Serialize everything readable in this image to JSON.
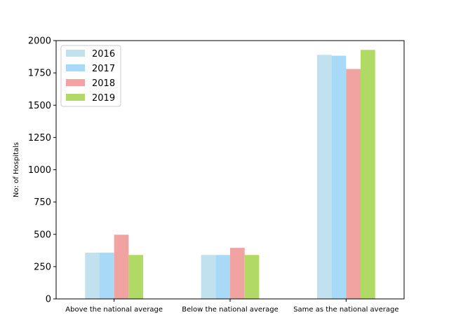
{
  "chart_data": {
    "type": "bar",
    "categories": [
      "Above the national average",
      "Below the national average",
      "Same as the national average"
    ],
    "series": [
      {
        "name": "2016",
        "color": "#c0e1ed",
        "values": [
          358,
          340,
          1890
        ]
      },
      {
        "name": "2017",
        "color": "#a8daf8",
        "values": [
          358,
          340,
          1883
        ]
      },
      {
        "name": "2018",
        "color": "#f1a3a1",
        "values": [
          497,
          395,
          1780
        ]
      },
      {
        "name": "2019",
        "color": "#b0d966",
        "values": [
          340,
          340,
          1928
        ]
      }
    ],
    "title": "",
    "xlabel": "",
    "ylabel": "No: of Hospitals",
    "ylim": [
      0,
      2000
    ],
    "yticks": [
      "0",
      "250",
      "500",
      "750",
      "1000",
      "1250",
      "1500",
      "1750",
      "2000"
    ],
    "grid": false,
    "legend_position": "top-left"
  }
}
